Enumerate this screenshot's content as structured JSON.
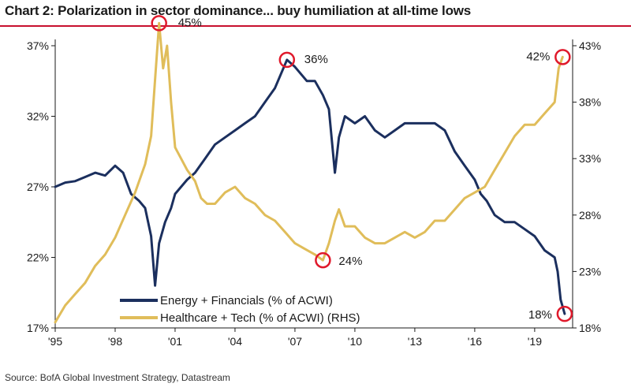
{
  "header": {
    "title": "Chart 2: Polarization in sector dominance... buy humiliation at all-time lows"
  },
  "footer": {
    "source": "Source: BofA Global Investment Strategy, Datastream"
  },
  "colors": {
    "series1": "#1b2f5e",
    "series2": "#e0bd5a",
    "marker": "#e0192b",
    "rule": "#c8102e"
  },
  "chart_data": {
    "type": "line",
    "x_ticks": [
      "'95",
      "'98",
      "'01",
      "'04",
      "'07",
      "'10",
      "'13",
      "'16",
      "'19"
    ],
    "xlim": [
      1995,
      2020.9
    ],
    "y_left": {
      "ticks": [
        "37%",
        "32%",
        "27%",
        "22%",
        "17%"
      ],
      "lim": [
        17,
        37
      ]
    },
    "y_right": {
      "ticks": [
        "43%",
        "38%",
        "33%",
        "28%",
        "23%",
        "18%"
      ],
      "lim": [
        18,
        43
      ]
    },
    "grid": false,
    "legend": "bottom-center",
    "series": [
      {
        "name": "Energy + Financials (% of ACWI)",
        "axis": "left",
        "x": [
          1995.0,
          1995.5,
          1996.0,
          1996.5,
          1997.0,
          1997.5,
          1998.0,
          1998.4,
          1998.8,
          1999.2,
          1999.5,
          1999.8,
          2000.0,
          2000.2,
          2000.5,
          2000.8,
          2001.0,
          2001.3,
          2001.6,
          2002.0,
          2002.5,
          2003.0,
          2003.5,
          2004.0,
          2004.5,
          2005.0,
          2005.5,
          2006.0,
          2006.3,
          2006.6,
          2007.0,
          2007.3,
          2007.6,
          2008.0,
          2008.4,
          2008.7,
          2009.0,
          2009.2,
          2009.5,
          2010.0,
          2010.5,
          2011.0,
          2011.5,
          2012.0,
          2012.5,
          2013.0,
          2013.5,
          2014.0,
          2014.5,
          2015.0,
          2015.5,
          2016.0,
          2016.3,
          2016.6,
          2017.0,
          2017.5,
          2018.0,
          2018.5,
          2019.0,
          2019.5,
          2020.0,
          2020.15,
          2020.3,
          2020.5
        ],
        "y": [
          27.0,
          27.3,
          27.4,
          27.7,
          28.0,
          27.8,
          28.5,
          28.0,
          26.5,
          26.0,
          25.5,
          23.5,
          20.0,
          23.0,
          24.5,
          25.5,
          26.5,
          27.0,
          27.5,
          28.0,
          29.0,
          30.0,
          30.5,
          31.0,
          31.5,
          32.0,
          33.0,
          34.0,
          35.0,
          36.0,
          35.5,
          35.0,
          34.5,
          34.5,
          33.5,
          32.5,
          28.0,
          30.5,
          32.0,
          31.5,
          32.0,
          31.0,
          30.5,
          31.0,
          31.5,
          31.5,
          31.5,
          31.5,
          31.0,
          29.5,
          28.5,
          27.5,
          26.5,
          26.0,
          25.0,
          24.5,
          24.5,
          24.0,
          23.5,
          22.5,
          22.0,
          21.0,
          19.0,
          18.0
        ]
      },
      {
        "name": "Healthcare + Tech (% of ACWI) (RHS)",
        "axis": "right",
        "x": [
          1995.0,
          1995.5,
          1996.0,
          1996.5,
          1997.0,
          1997.5,
          1998.0,
          1998.5,
          1999.0,
          1999.5,
          1999.8,
          2000.0,
          2000.2,
          2000.4,
          2000.6,
          2000.8,
          2001.0,
          2001.3,
          2001.6,
          2002.0,
          2002.3,
          2002.6,
          2003.0,
          2003.5,
          2004.0,
          2004.5,
          2005.0,
          2005.5,
          2006.0,
          2006.5,
          2007.0,
          2007.5,
          2008.0,
          2008.4,
          2008.7,
          2009.0,
          2009.2,
          2009.5,
          2010.0,
          2010.5,
          2011.0,
          2011.5,
          2012.0,
          2012.5,
          2013.0,
          2013.5,
          2014.0,
          2014.5,
          2015.0,
          2015.5,
          2016.0,
          2016.5,
          2017.0,
          2017.5,
          2018.0,
          2018.5,
          2019.0,
          2019.5,
          2020.0,
          2020.2,
          2020.4
        ],
        "y": [
          18.5,
          20.0,
          21.0,
          22.0,
          23.5,
          24.5,
          26.0,
          28.0,
          30.0,
          32.5,
          35.0,
          40.0,
          45.0,
          41.0,
          43.0,
          38.0,
          34.0,
          33.0,
          32.0,
          31.0,
          29.5,
          29.0,
          29.0,
          30.0,
          30.5,
          29.5,
          29.0,
          28.0,
          27.5,
          26.5,
          25.5,
          25.0,
          24.5,
          24.0,
          25.5,
          27.5,
          28.5,
          27.0,
          27.0,
          26.0,
          25.5,
          25.5,
          26.0,
          26.5,
          26.0,
          26.5,
          27.5,
          27.5,
          28.5,
          29.5,
          30.0,
          30.5,
          32.0,
          33.5,
          35.0,
          36.0,
          36.0,
          37.0,
          38.0,
          41.0,
          42.0
        ]
      }
    ],
    "annotations": [
      {
        "label": "45%",
        "axis": "right",
        "x": 2000.2,
        "y": 45.0
      },
      {
        "label": "36%",
        "axis": "left",
        "x": 2006.6,
        "y": 36.0
      },
      {
        "label": "42%",
        "axis": "right",
        "x": 2020.4,
        "y": 42.0
      },
      {
        "label": "24%",
        "axis": "right",
        "x": 2008.4,
        "y": 24.0
      },
      {
        "label": "18%",
        "axis": "left",
        "x": 2020.5,
        "y": 18.0
      }
    ]
  }
}
